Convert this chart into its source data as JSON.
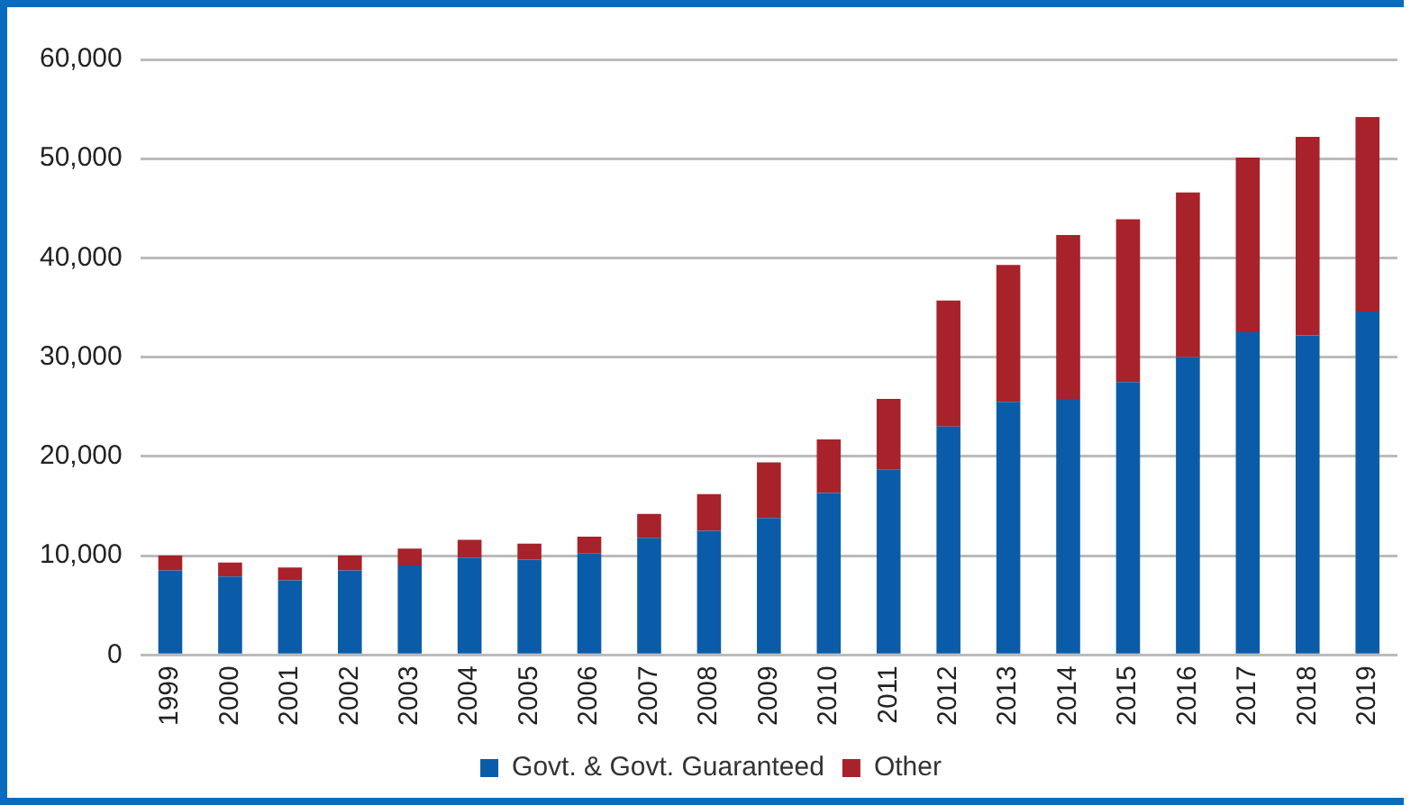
{
  "chart_data": {
    "type": "bar",
    "stacked": true,
    "categories": [
      "1999",
      "2000",
      "2001",
      "2002",
      "2003",
      "2004",
      "2005",
      "2006",
      "2007",
      "2008",
      "2009",
      "2010",
      "2011",
      "2012",
      "2013",
      "2014",
      "2015",
      "2016",
      "2017",
      "2018",
      "2019"
    ],
    "series": [
      {
        "name": "Govt. & Govt. Guaranteed",
        "color": "#0b5ca8",
        "values": [
          8500,
          7900,
          7500,
          8500,
          9000,
          9800,
          9600,
          10200,
          11800,
          12500,
          13800,
          16300,
          18700,
          23000,
          25500,
          25800,
          27500,
          30000,
          32500,
          32200,
          34600
        ]
      },
      {
        "name": "Other",
        "color": "#a7222a",
        "values": [
          1500,
          1400,
          1300,
          1500,
          1700,
          1800,
          1600,
          1700,
          2400,
          3700,
          5600,
          5400,
          7100,
          12700,
          13800,
          16500,
          16400,
          16600,
          17600,
          20000,
          19600
        ]
      }
    ],
    "ylim": [
      0,
      60000
    ],
    "yticks": [
      0,
      {
        "value": 10000,
        "label": "10,000"
      },
      {
        "value": 20000,
        "label": "20,000"
      },
      {
        "value": 30000,
        "label": "30,000"
      },
      {
        "value": 40000,
        "label": "40,000"
      },
      {
        "value": 50000,
        "label": "50,000"
      },
      {
        "value": 60000,
        "label": "60,000"
      }
    ],
    "grid": "y",
    "legend": "bottom"
  }
}
